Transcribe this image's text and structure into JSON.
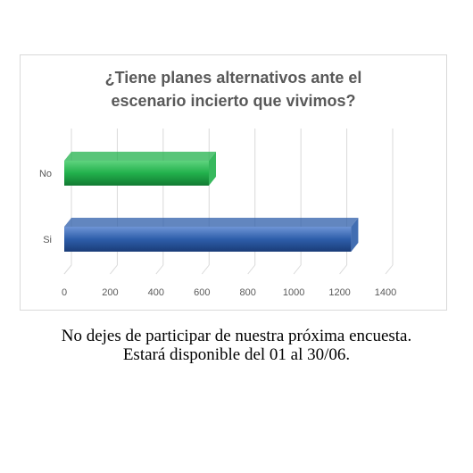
{
  "chart_data": {
    "type": "bar",
    "orientation": "horizontal",
    "style": "3d",
    "title_lines": [
      "¿Tiene planes alternativos  ante el",
      "escenario  incierto  que vivimos?"
    ],
    "categories": [
      "No",
      "Si"
    ],
    "values": [
      630,
      1250
    ],
    "colors": [
      "#22b14c",
      "#2e5eaa"
    ],
    "xlim": [
      0,
      1400
    ],
    "xticks": [
      "0",
      "200",
      "400",
      "600",
      "800",
      "1000",
      "1200",
      "1400"
    ],
    "grid": true,
    "legend": "none"
  },
  "caption": {
    "line1": "No dejes de participar de nuestra próxima encuesta.",
    "line2": "Estará disponible del 01 al 30/06."
  }
}
